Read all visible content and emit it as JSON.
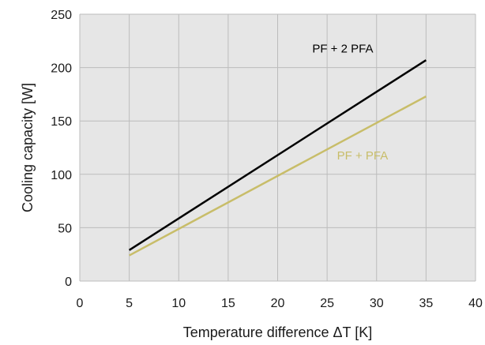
{
  "chart_data": {
    "type": "line",
    "xlabel": "Temperature difference ΔT [K]",
    "ylabel": "Cooling capacity [W]",
    "xlim": [
      0,
      40
    ],
    "ylim": [
      0,
      250
    ],
    "x_ticks": [
      0,
      5,
      10,
      15,
      20,
      25,
      30,
      35,
      40
    ],
    "y_ticks": [
      0,
      50,
      100,
      150,
      200,
      250
    ],
    "grid": true,
    "plot_background": "#e6e6e6",
    "grid_color": "#bcbcbc",
    "series": [
      {
        "name": "PF + 2 PFA",
        "color": "#000000",
        "x": [
          5,
          35
        ],
        "y": [
          29,
          207
        ]
      },
      {
        "name": "PF + PFA",
        "color": "#c8bd69",
        "x": [
          5,
          35
        ],
        "y": [
          24,
          173
        ]
      }
    ]
  }
}
